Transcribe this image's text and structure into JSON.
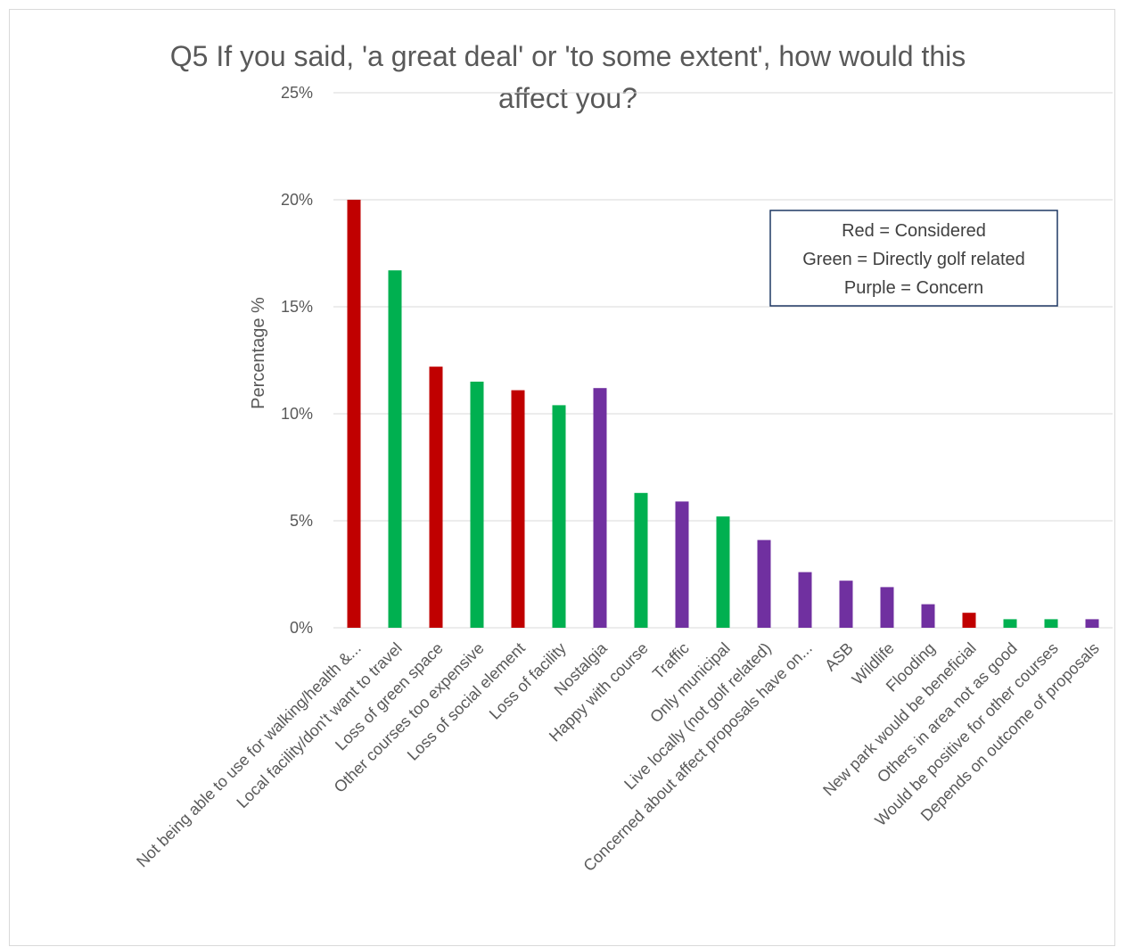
{
  "chart_data": {
    "type": "bar",
    "title_lines": [
      "Q5 If you said, 'a great deal' or 'to some extent', how would this",
      "affect you?"
    ],
    "ylabel": "Percentage %",
    "xlabel": "",
    "ylim": [
      0,
      25
    ],
    "yticks": [
      "0%",
      "5%",
      "10%",
      "15%",
      "20%",
      "25%"
    ],
    "grid": true,
    "categories": [
      "Not being able to use for walking/health &...",
      "Local facility/don't want to travel",
      "Loss of green space",
      "Other courses too expensive",
      "Loss of social element",
      "Loss of facility",
      "Nostalgia",
      "Happy with course",
      "Traffic",
      "Only municipal",
      "Live locally (not golf related)",
      "Concerned about affect proposals have on...",
      "ASB",
      "Wildlife",
      "Flooding",
      "New park would be beneficial",
      "Others in area not as good",
      "Would be positive for other courses",
      "Depends on outcome of proposals"
    ],
    "values": [
      20.0,
      16.7,
      12.2,
      11.5,
      11.1,
      10.4,
      11.2,
      6.3,
      5.9,
      5.2,
      4.1,
      2.6,
      2.2,
      1.9,
      1.1,
      0.7,
      0.4,
      0.4,
      0.4
    ],
    "groups": [
      "red",
      "green",
      "red",
      "green",
      "red",
      "green",
      "purple",
      "green",
      "purple",
      "green",
      "purple",
      "purple",
      "purple",
      "purple",
      "purple",
      "red",
      "green",
      "green",
      "purple"
    ],
    "colors": {
      "red": "#c00000",
      "green": "#00b050",
      "purple": "#7030a0"
    },
    "legend": {
      "placement": "top-right",
      "lines": [
        "Red = Considered",
        "Green = Directly golf related",
        "Purple = Concern"
      ]
    }
  }
}
